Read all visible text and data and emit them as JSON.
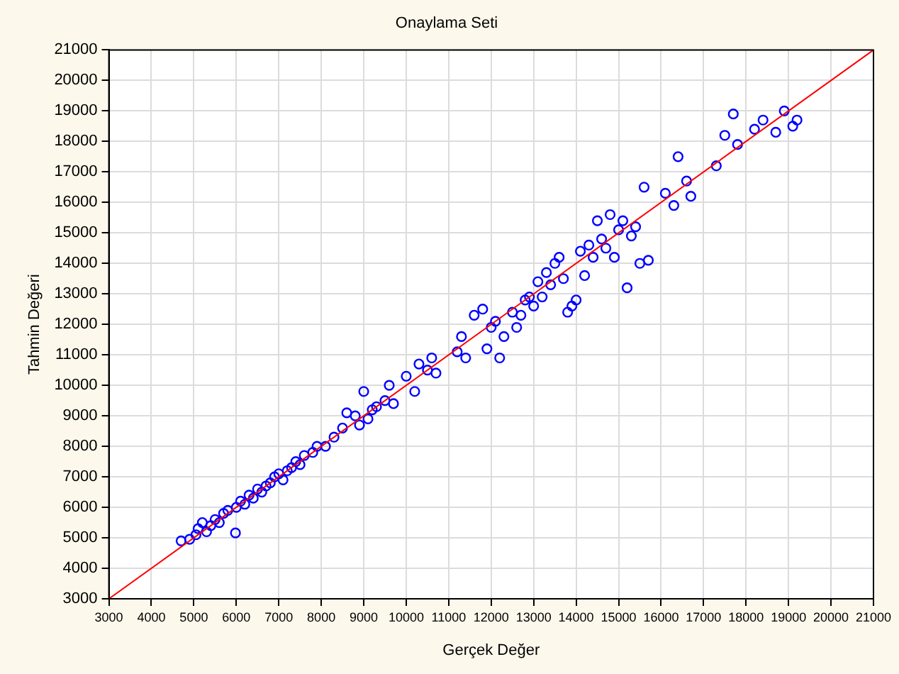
{
  "chart_data": {
    "type": "scatter",
    "title": "Onaylama Seti",
    "xlabel": "Gerçek Değer",
    "ylabel": "Tahmin Değeri",
    "xlim": [
      3000,
      21000
    ],
    "ylim": [
      3000,
      21000
    ],
    "xticks": [
      3000,
      4000,
      5000,
      6000,
      7000,
      8000,
      9000,
      10000,
      11000,
      12000,
      13000,
      14000,
      15000,
      16000,
      17000,
      18000,
      19000,
      20000,
      21000
    ],
    "yticks": [
      3000,
      4000,
      5000,
      6000,
      7000,
      8000,
      9000,
      10000,
      11000,
      12000,
      13000,
      14000,
      15000,
      16000,
      17000,
      18000,
      19000,
      20000,
      21000
    ],
    "grid": true,
    "legend": false,
    "marker": "circle",
    "series": [
      {
        "color": "#0000ff",
        "x": [
          4700,
          4900,
          5050,
          5100,
          5200,
          5300,
          5400,
          5500,
          5600,
          5700,
          5800,
          5980,
          6000,
          6100,
          6200,
          6300,
          6400,
          6500,
          6600,
          6700,
          6800,
          6900,
          7000,
          7100,
          7200,
          7300,
          7400,
          7500,
          7600,
          7800,
          7900,
          8100,
          8300,
          8500,
          8600,
          8800,
          8900,
          9000,
          9100,
          9200,
          9300,
          9500,
          9600,
          9700,
          10000,
          10200,
          10300,
          10500,
          10600,
          10700,
          11200,
          11300,
          11400,
          11600,
          11800,
          11900,
          12000,
          12100,
          12200,
          12300,
          12500,
          12600,
          12700,
          12800,
          12900,
          13000,
          13100,
          13200,
          13300,
          13400,
          13500,
          13600,
          13700,
          13800,
          13900,
          14000,
          14100,
          14200,
          14300,
          14400,
          14500,
          14600,
          14700,
          14800,
          14900,
          15000,
          15100,
          15200,
          15300,
          15400,
          15500,
          15600,
          15700,
          16100,
          16300,
          16400,
          16600,
          16700,
          17300,
          17500,
          17700,
          17800,
          18200,
          18400,
          18700,
          18900,
          19100,
          19200
        ],
        "values": [
          4900,
          4950,
          5100,
          5300,
          5500,
          5200,
          5400,
          5600,
          5500,
          5800,
          5900,
          5160,
          6000,
          6200,
          6100,
          6400,
          6300,
          6600,
          6500,
          6700,
          6800,
          7000,
          7100,
          6900,
          7200,
          7300,
          7500,
          7400,
          7700,
          7800,
          8000,
          8000,
          8300,
          8600,
          9100,
          9000,
          8700,
          9800,
          8900,
          9200,
          9300,
          9500,
          10000,
          9400,
          10300,
          9800,
          10700,
          10500,
          10900,
          10400,
          11100,
          11600,
          10900,
          12300,
          12500,
          11200,
          11900,
          12100,
          10900,
          11600,
          12400,
          11900,
          12300,
          12800,
          12900,
          12600,
          13400,
          12900,
          13700,
          13300,
          14000,
          14200,
          13500,
          12400,
          12600,
          12800,
          14400,
          13600,
          14600,
          14200,
          15400,
          14800,
          14500,
          15600,
          14200,
          15100,
          15400,
          13200,
          14900,
          15200,
          14000,
          16500,
          14100,
          16300,
          15900,
          17500,
          16700,
          16200,
          17200,
          18200,
          18900,
          17900,
          18400,
          18700,
          18300,
          19000,
          18500,
          18700
        ]
      },
      {
        "type": "line",
        "color": "#ff0000",
        "x": [
          3000,
          21000
        ],
        "values": [
          3000,
          21000
        ],
        "line_style": "solid",
        "marker": "none"
      }
    ]
  }
}
